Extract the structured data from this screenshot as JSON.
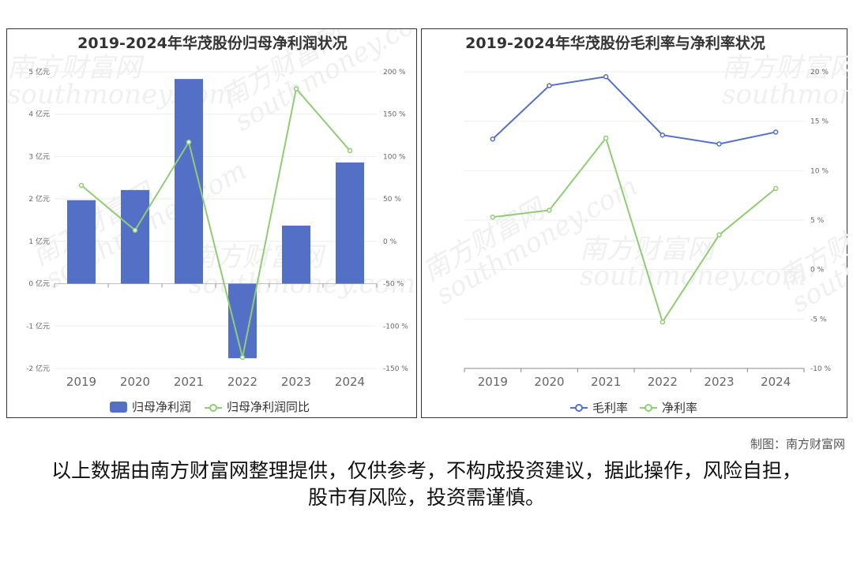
{
  "credit": "制图：南方财富网",
  "disclaimer": "以上数据由南方财富网整理提供，仅供参考，不构成投资建议，据此操作，风险自担，股市有风险，投资需谨慎。",
  "watermark": {
    "cn": "南方财富网",
    "en": "southmoney.com"
  },
  "colors": {
    "blue": "#5470c6",
    "green": "#91cc75"
  },
  "chart_data": [
    {
      "type": "bar",
      "title": "2019-2024年华茂股份归母净利润状况",
      "categories": [
        "2019",
        "2020",
        "2021",
        "2022",
        "2023",
        "2024"
      ],
      "y_left": {
        "ylim": [
          -2,
          5
        ],
        "ticks": [
          "-2 亿元",
          "-1 亿元",
          "0 亿元",
          "1 亿元",
          "2 亿元",
          "3 亿元",
          "4 亿元",
          "5 亿元"
        ]
      },
      "y_right": {
        "ylim": [
          -150,
          200
        ],
        "ticks": [
          "-150 %",
          "-100 %",
          "-50 %",
          "0 %",
          "50 %",
          "100 %",
          "150 %",
          "200 %"
        ]
      },
      "series": [
        {
          "name": "归母净利润",
          "type": "bar",
          "axis": "left",
          "color": "#5470c6",
          "values": [
            1.97,
            2.21,
            4.83,
            -1.76,
            1.37,
            2.86
          ]
        },
        {
          "name": "归母净利润同比",
          "type": "line",
          "axis": "right",
          "color": "#91cc75",
          "values": [
            66,
            13,
            117,
            -137,
            180,
            107
          ]
        }
      ],
      "legend_position": "bottom"
    },
    {
      "type": "line",
      "title": "2019-2024年华茂股份毛利率与净利率状况",
      "categories": [
        "2019",
        "2020",
        "2021",
        "2022",
        "2023",
        "2024"
      ],
      "y_right": {
        "ylim": [
          -10,
          20
        ],
        "ticks": [
          "-10 %",
          "-5 %",
          "0 %",
          "5 %",
          "10 %",
          "15 %",
          "20 %"
        ]
      },
      "series": [
        {
          "name": "毛利率",
          "color": "#5470c6",
          "values": [
            13.2,
            18.6,
            19.5,
            13.6,
            12.7,
            13.9
          ]
        },
        {
          "name": "净利率",
          "color": "#91cc75",
          "values": [
            5.3,
            6.0,
            13.3,
            -5.3,
            3.5,
            8.2
          ]
        }
      ],
      "legend_position": "bottom"
    }
  ]
}
